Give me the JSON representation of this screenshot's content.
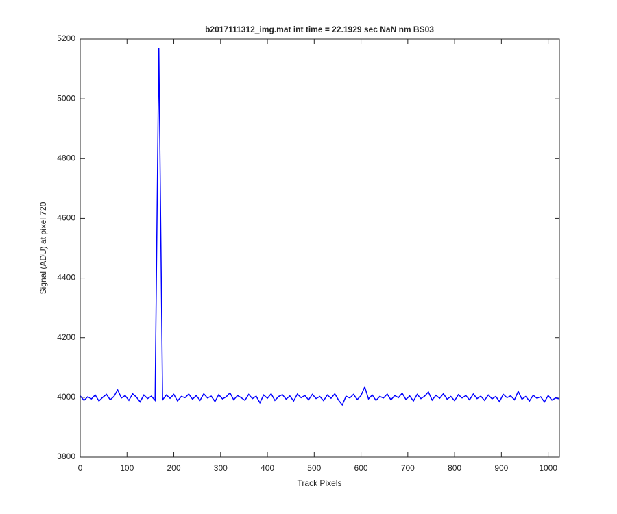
{
  "chart_data": {
    "type": "line",
    "title": "b2017111312_img.mat int time = 22.1929 sec  NaN nm BS03",
    "x_label": "Track Pixels",
    "y_label": "Signal (ADU) at pixel 720",
    "color": "#0000ff",
    "xlim": [
      0,
      1024
    ],
    "ylim": [
      3800,
      5200
    ],
    "xticks": [
      0,
      100,
      200,
      300,
      400,
      500,
      600,
      700,
      800,
      900,
      1000
    ],
    "yticks": [
      3800,
      4000,
      4200,
      4400,
      4600,
      4800,
      5000,
      5200
    ],
    "x": [
      0,
      8,
      16,
      24,
      32,
      40,
      48,
      56,
      64,
      72,
      80,
      88,
      96,
      104,
      112,
      120,
      128,
      136,
      144,
      152,
      160,
      168,
      176,
      184,
      192,
      200,
      208,
      216,
      224,
      232,
      240,
      248,
      256,
      264,
      272,
      280,
      288,
      296,
      304,
      312,
      320,
      328,
      336,
      344,
      352,
      360,
      368,
      376,
      384,
      392,
      400,
      408,
      416,
      424,
      432,
      440,
      448,
      456,
      464,
      472,
      480,
      488,
      496,
      504,
      512,
      520,
      528,
      536,
      544,
      552,
      560,
      568,
      576,
      584,
      592,
      600,
      608,
      616,
      624,
      632,
      640,
      648,
      656,
      664,
      672,
      680,
      688,
      696,
      704,
      712,
      720,
      728,
      736,
      744,
      752,
      760,
      768,
      776,
      784,
      792,
      800,
      808,
      816,
      824,
      832,
      840,
      848,
      856,
      864,
      872,
      880,
      888,
      896,
      904,
      912,
      920,
      928,
      936,
      944,
      952,
      960,
      968,
      976,
      984,
      992,
      1000,
      1008,
      1016,
      1024
    ],
    "values": [
      4005,
      3990,
      4002,
      3995,
      4008,
      3988,
      4000,
      4010,
      3992,
      4003,
      4025,
      3998,
      4006,
      3990,
      4012,
      4001,
      3985,
      4008,
      3996,
      4004,
      3990,
      5170,
      3992,
      4008,
      3997,
      4010,
      3988,
      4003,
      3999,
      4011,
      3994,
      4006,
      3990,
      4012,
      3998,
      4004,
      3986,
      4009,
      3995,
      4002,
      4015,
      3992,
      4006,
      3999,
      3990,
      4010,
      3996,
      4004,
      3982,
      4008,
      3997,
      4012,
      3990,
      4003,
      4009,
      3994,
      4005,
      3988,
      4011,
      3999,
      4006,
      3992,
      4010,
      3996,
      4003,
      3989,
      4008,
      3997,
      4012,
      3991,
      3975,
      4004,
      3998,
      4010,
      3993,
      4006,
      4035,
      3995,
      4008,
      3990,
      4003,
      3998,
      4011,
      3992,
      4006,
      3999,
      4014,
      3993,
      4005,
      3988,
      4010,
      3996,
      4004,
      4018,
      3991,
      4007,
      3997,
      4012,
      3994,
      4003,
      3989,
      4009,
      3998,
      4006,
      3992,
      4011,
      3996,
      4004,
      3990,
      4008,
      3995,
      4003,
      3986,
      4010,
      3999,
      4005,
      3992,
      4020,
      3994,
      4003,
      3988,
      4007,
      3997,
      4002,
      3985,
      4006,
      3991,
      3998,
      3995
    ]
  }
}
